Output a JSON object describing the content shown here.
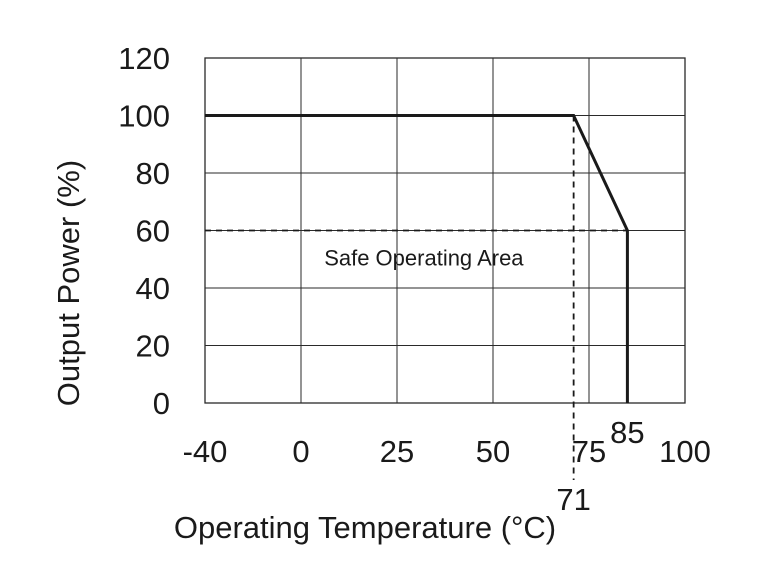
{
  "chart_data": {
    "type": "line",
    "title": "",
    "xlabel": "Operating Temperature (°C)",
    "ylabel": "Output Power (%)",
    "xlim": [
      -40,
      85
    ],
    "ylim": [
      0,
      120
    ],
    "x_ticks": [
      {
        "value": -40,
        "label": "-40"
      },
      {
        "value": 0,
        "label": "0"
      },
      {
        "value": 25,
        "label": "25"
      },
      {
        "value": 50,
        "label": "50"
      },
      {
        "value": 75,
        "label": "75"
      },
      {
        "value": 100,
        "label": "100"
      }
    ],
    "y_ticks": [
      {
        "value": 0,
        "label": "0"
      },
      {
        "value": 20,
        "label": "20"
      },
      {
        "value": 40,
        "label": "40"
      },
      {
        "value": 60,
        "label": "60"
      },
      {
        "value": 80,
        "label": "80"
      },
      {
        "value": 100,
        "label": "100"
      },
      {
        "value": 120,
        "label": "120"
      }
    ],
    "grid": true,
    "series": [
      {
        "x": [
          -40,
          71,
          85,
          85
        ],
        "y": [
          100,
          100,
          60,
          0
        ],
        "color": "#1a1a1a"
      }
    ],
    "reference_lines": [
      {
        "x": [
          71,
          71
        ],
        "y": [
          100,
          -30
        ],
        "style": "dashed"
      },
      {
        "x": [
          -40,
          85
        ],
        "y": [
          60,
          60
        ],
        "style": "dashed"
      }
    ],
    "annotations": [
      {
        "text": "Safe Operating Area",
        "x": 32,
        "y": 51
      },
      {
        "text": "71",
        "x": 71,
        "y": -34
      },
      {
        "text": "85",
        "x": 85,
        "y": -11
      }
    ]
  }
}
